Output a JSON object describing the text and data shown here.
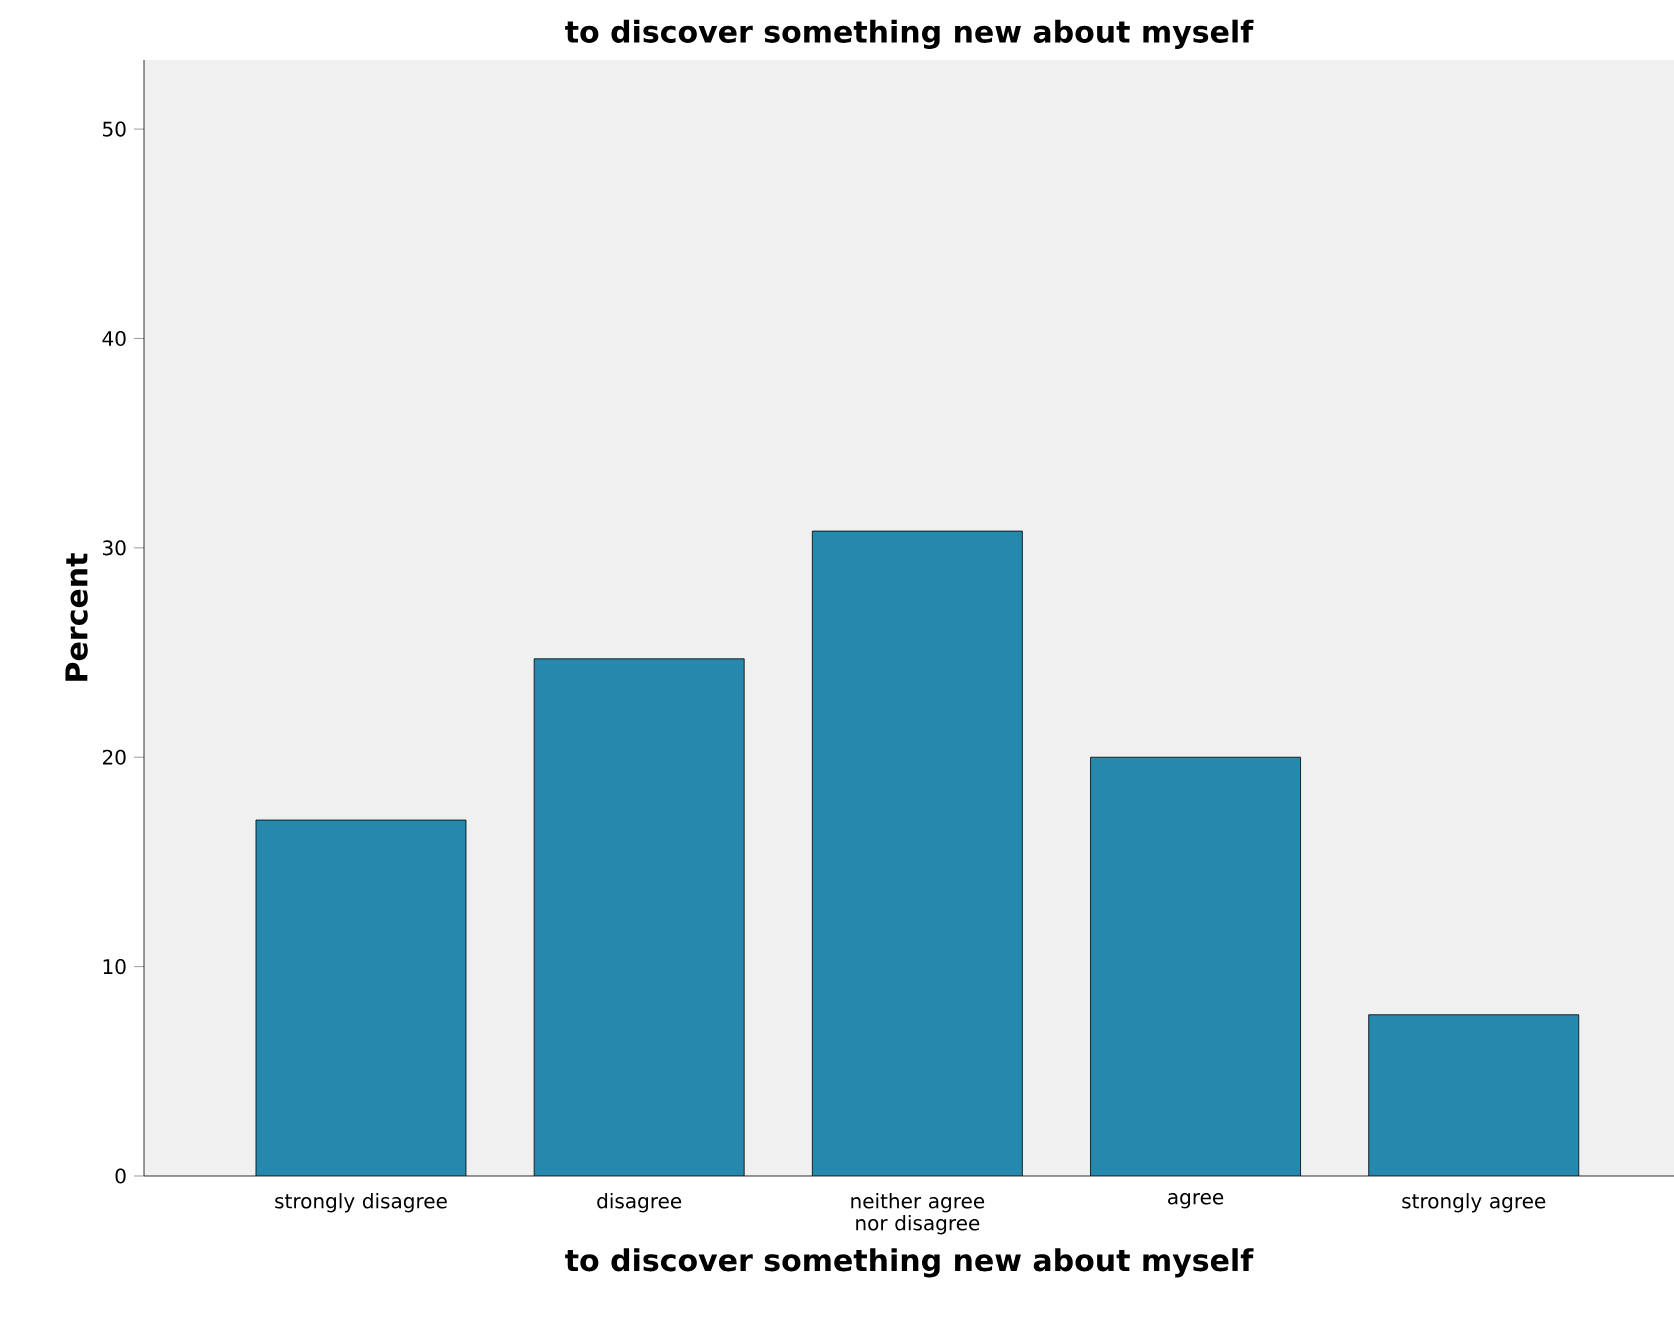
{
  "chart_data": {
    "type": "bar",
    "title": "to discover something new about myself",
    "xlabel": "to discover something new about myself",
    "ylabel": "Percent",
    "categories": [
      "strongly disagree",
      "disagree",
      "neither agree nor disagree",
      "agree",
      "strongly agree"
    ],
    "values": [
      17.0,
      24.7,
      30.8,
      20.0,
      7.7
    ],
    "color": "#2688ad",
    "ylim": [
      0,
      53.3
    ],
    "yticks": [
      0,
      10,
      20,
      30,
      40,
      50
    ],
    "grid": false
  }
}
